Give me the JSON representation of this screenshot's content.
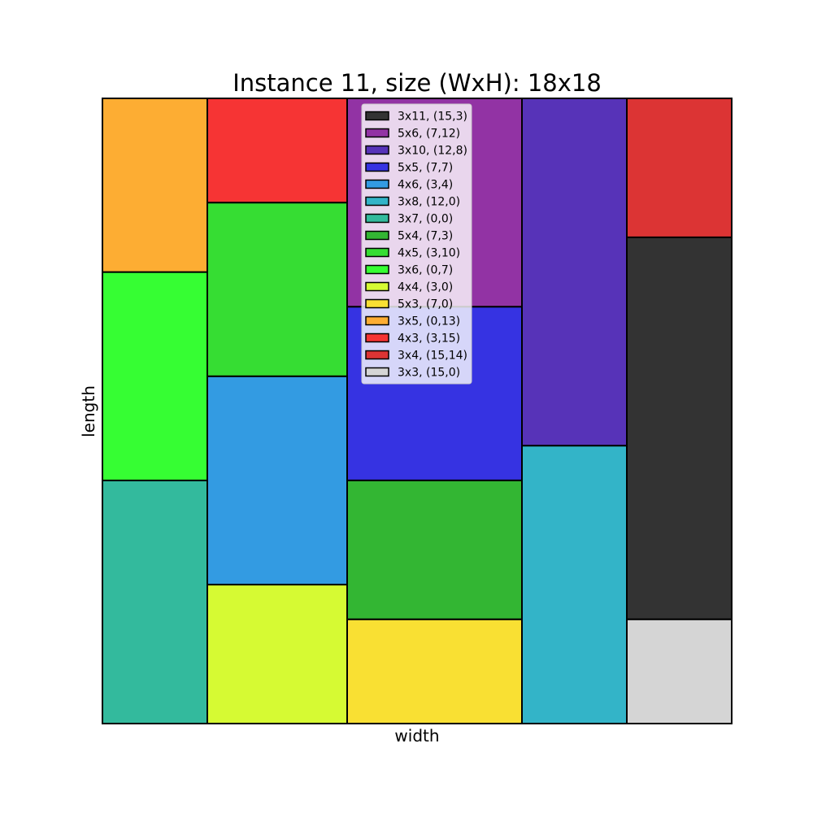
{
  "chart_data": {
    "type": "rectangle-packing",
    "title": "Instance 11, size (WxH): 18x18",
    "xlabel": "width",
    "ylabel": "length",
    "container": {
      "width": 18,
      "height": 18
    },
    "xlim": [
      0,
      18
    ],
    "ylim": [
      0,
      18
    ],
    "grid": false,
    "legend_position": "top-center",
    "rectangles": [
      {
        "label": "3x11, (15,3)",
        "w": 3,
        "h": 11,
        "x": 15,
        "y": 3,
        "color": "#333333"
      },
      {
        "label": "5x6, (7,12)",
        "w": 5,
        "h": 6,
        "x": 7,
        "y": 12,
        "color": "#9233a4"
      },
      {
        "label": "3x10, (12,8)",
        "w": 3,
        "h": 10,
        "x": 12,
        "y": 8,
        "color": "#5733b8"
      },
      {
        "label": "5x5, (7,7)",
        "w": 5,
        "h": 5,
        "x": 7,
        "y": 7,
        "color": "#3633e2"
      },
      {
        "label": "4x6, (3,4)",
        "w": 4,
        "h": 6,
        "x": 3,
        "y": 4,
        "color": "#339be2"
      },
      {
        "label": "3x8, (12,0)",
        "w": 3,
        "h": 8,
        "x": 12,
        "y": 0,
        "color": "#33b4c8"
      },
      {
        "label": "3x7, (0,0)",
        "w": 3,
        "h": 7,
        "x": 0,
        "y": 0,
        "color": "#33ba9d"
      },
      {
        "label": "5x4, (7,3)",
        "w": 5,
        "h": 4,
        "x": 7,
        "y": 3,
        "color": "#33b633"
      },
      {
        "label": "4x5, (3,10)",
        "w": 4,
        "h": 5,
        "x": 3,
        "y": 10,
        "color": "#36dd33"
      },
      {
        "label": "3x6, (0,7)",
        "w": 3,
        "h": 6,
        "x": 0,
        "y": 7,
        "color": "#36fe33"
      },
      {
        "label": "4x4, (3,0)",
        "w": 4,
        "h": 4,
        "x": 3,
        "y": 0,
        "color": "#d6fa33"
      },
      {
        "label": "5x3, (7,0)",
        "w": 5,
        "h": 3,
        "x": 7,
        "y": 0,
        "color": "#f9e033"
      },
      {
        "label": "3x5, (0,13)",
        "w": 3,
        "h": 5,
        "x": 0,
        "y": 13,
        "color": "#fdad33"
      },
      {
        "label": "4x3, (3,15)",
        "w": 4,
        "h": 3,
        "x": 3,
        "y": 15,
        "color": "#f63434"
      },
      {
        "label": "3x4, (15,14)",
        "w": 3,
        "h": 4,
        "x": 15,
        "y": 14,
        "color": "#dc3434"
      },
      {
        "label": "3x3, (15,0)",
        "w": 3,
        "h": 3,
        "x": 15,
        "y": 0,
        "color": "#d5d5d5"
      }
    ]
  }
}
